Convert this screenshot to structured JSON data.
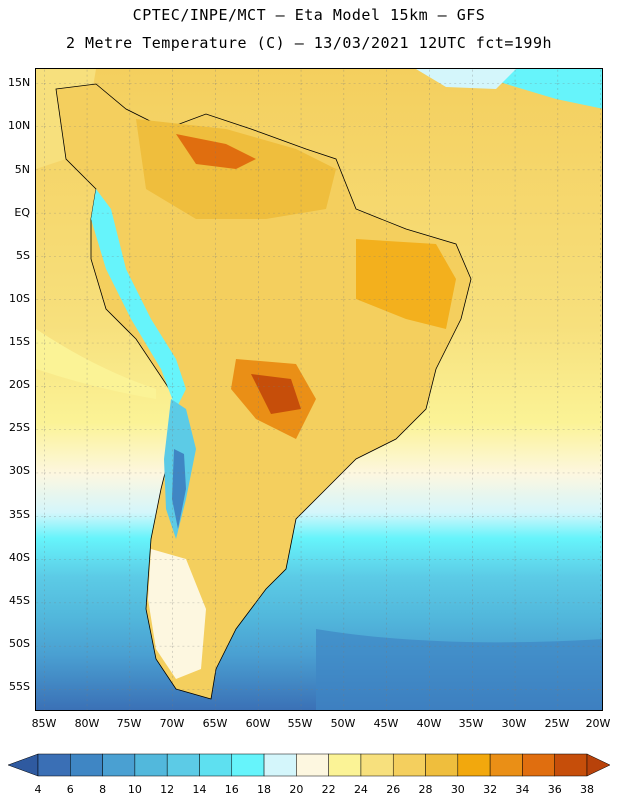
{
  "header": {
    "line1": "CPTEC/INPE/MCT –  Eta Model 15km – GFS",
    "line2": "2 Metre Temperature (C) – 13/03/2021 12UTC fct=199h"
  },
  "map": {
    "lat_labels": [
      "15N",
      "10N",
      "5N",
      "EQ",
      "5S",
      "10S",
      "15S",
      "20S",
      "25S",
      "30S",
      "35S",
      "40S",
      "45S",
      "50S",
      "55S"
    ],
    "lon_labels": [
      "85W",
      "80W",
      "75W",
      "70W",
      "65W",
      "60W",
      "55W",
      "50W",
      "45W",
      "40W",
      "35W",
      "30W",
      "25W",
      "20W"
    ]
  },
  "legend": {
    "ticks": [
      "4",
      "6",
      "8",
      "10",
      "12",
      "14",
      "16",
      "18",
      "20",
      "22",
      "24",
      "26",
      "28",
      "30",
      "32",
      "34",
      "36",
      "38"
    ],
    "colors": [
      "#3a6fb5",
      "#3f86c4",
      "#4aa0d2",
      "#52b8dc",
      "#5ccbe6",
      "#5ee0f0",
      "#66f4fb",
      "#d4f6fb",
      "#fdf7e0",
      "#fbf396",
      "#f7e07d",
      "#f4cf5e",
      "#efbe3d",
      "#f2a80d",
      "#ea8f16",
      "#e06e0f",
      "#c64e0a"
    ],
    "low_color": "#2f5aa0",
    "high_color": "#b8420a"
  }
}
